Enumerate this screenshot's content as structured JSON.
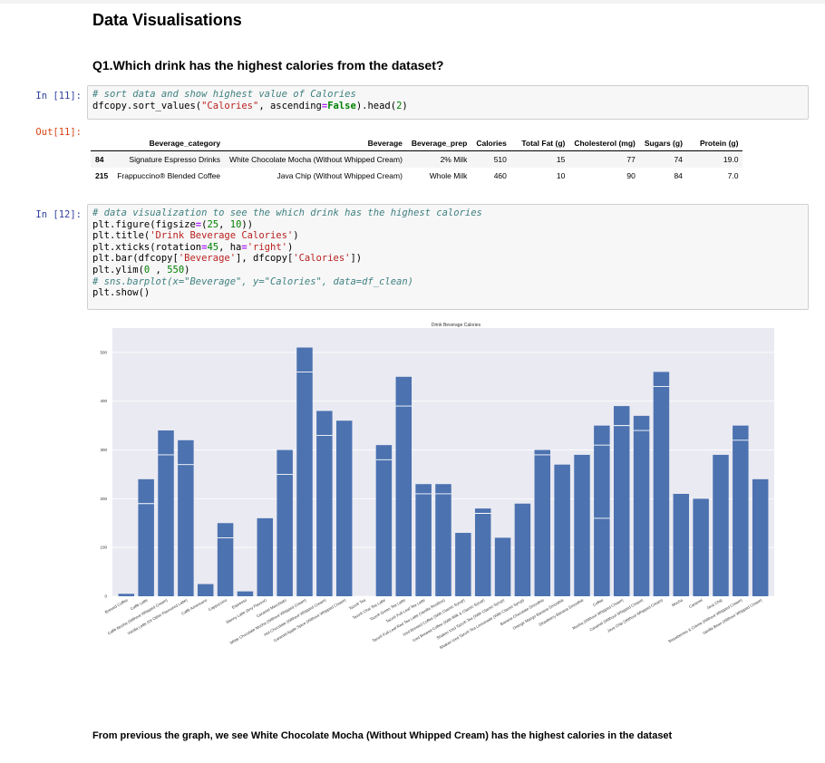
{
  "heading": "Data Visualisations",
  "question": "Q1.Which drink has the highest calories from the dataset?",
  "cell1": {
    "in_prompt": "In [11]:",
    "out_prompt": "Out[11]:"
  },
  "cell2": {
    "in_prompt": "In [12]:"
  },
  "table": {
    "columns": [
      "Beverage_category",
      "Beverage",
      "Beverage_prep",
      "Calories",
      "Total Fat (g)",
      "Cholesterol (mg)",
      "Sugars (g)",
      "Protein (g)"
    ],
    "rows": [
      {
        "index": "84",
        "cells": [
          "Signature Espresso Drinks",
          "White Chocolate Mocha (Without Whipped Cream)",
          "2% Milk",
          "510",
          "15",
          "77",
          "74",
          "19.0"
        ]
      },
      {
        "index": "215",
        "cells": [
          "Frappuccino® Blended Coffee",
          "Java Chip (Without Whipped Cream)",
          "Whole Milk",
          "460",
          "10",
          "90",
          "84",
          "7.0"
        ]
      }
    ]
  },
  "conclusion": "From previous the graph, we see White Chocolate Mocha (Without Whipped Cream) has the highest calories in the dataset",
  "chart_data": {
    "type": "bar",
    "title": "Drink Beverage Calories",
    "ylim": [
      0,
      550
    ],
    "yticks": [
      0,
      100,
      200,
      300,
      400,
      500
    ],
    "grid": true,
    "bar_color": "#4c72b0",
    "background": "#eaeaf2",
    "categories": [
      "Brewed Coffee",
      "Caffè Latte",
      "Caffè Mocha (Without Whipped Cream)",
      "Vanilla Latte (Or Other Flavoured Latte)",
      "Caffè Americano",
      "Cappuccino",
      "Espresso",
      "Skinny Latte (Any Flavour)",
      "Caramel Macchiato",
      "White Chocolate Mocha (Without Whipped Cream)",
      "Hot Chocolate (Without Whipped Cream)",
      "Caramel Apple Spice (Without Whipped Cream)",
      "Tazo® Tea",
      "Tazo® Chai Tea Latte",
      "Tazo® Green Tea Latte",
      "Tazo® Full-Leaf Tea Latte",
      "Tazo® Full-Leaf Red Tea Latte (Vanilla Rooibos)",
      "Iced Brewed Coffee (With Classic Syrup)",
      "Iced Brewed Coffee (With Milk & Classic Syrup)",
      "Shaken Iced Tazo® Tea (With Classic Syrup)",
      "Shaken Iced Tazo® Tea Lemonade (With Classic Syrup)",
      "Banana Chocolate Smoothie",
      "Orange Mango Banana Smoothie",
      "Strawberry Banana Smoothie",
      "Coffee",
      "Mocha (Without Whipped Cream)",
      "Caramel (Without Whipped Cream)",
      "Java Chip (Without Whipped Cream)",
      "Mocha",
      "Caramel",
      "Java Chip",
      "Strawberries & Crème (Without Whipped Cream)",
      "Vanilla Bean (Without Whipped Cream)"
    ],
    "values": [
      5,
      240,
      340,
      320,
      25,
      150,
      10,
      160,
      300,
      510,
      380,
      360,
      0,
      310,
      450,
      230,
      230,
      130,
      180,
      120,
      190,
      300,
      270,
      290,
      350,
      390,
      370,
      460,
      210,
      200,
      290,
      350,
      240
    ],
    "overlap_lines": [
      null,
      190,
      290,
      270,
      null,
      120,
      null,
      null,
      250,
      460,
      330,
      null,
      null,
      280,
      390,
      210,
      210,
      null,
      170,
      null,
      null,
      290,
      null,
      null,
      310,
      350,
      340,
      430,
      null,
      null,
      null,
      320,
      null
    ],
    "overlap_lines_2": [
      null,
      null,
      null,
      null,
      null,
      null,
      null,
      null,
      null,
      null,
      null,
      null,
      null,
      null,
      null,
      null,
      null,
      null,
      null,
      null,
      null,
      null,
      null,
      null,
      160,
      null,
      null,
      null,
      null,
      null,
      null,
      null,
      null
    ]
  }
}
